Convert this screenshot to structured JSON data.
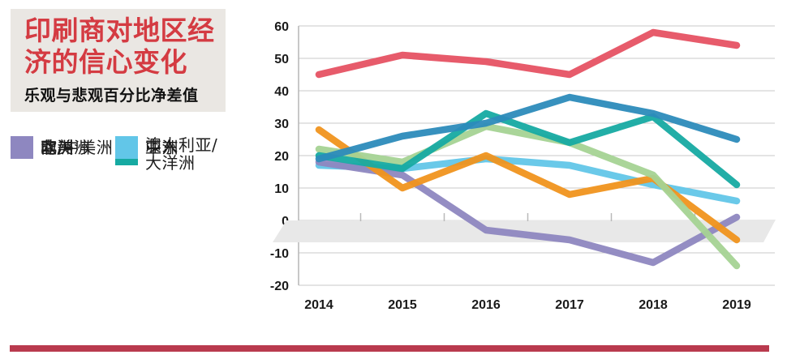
{
  "header": {
    "title_line1": "印刷商对地区经",
    "title_line2": "济的信心变化",
    "subtitle": "乐观与悲观百分比净差值",
    "title_color": "#d43b42",
    "box_bg": "#eae7e3"
  },
  "legend": {
    "items": [
      {
        "label": "欧洲",
        "color": "#2c8bba"
      },
      {
        "label": "北美洲",
        "color": "#e65263"
      },
      {
        "label": "南/中美洲",
        "color": "#a5d394"
      },
      {
        "label": "非洲",
        "color": "#8e87c0"
      },
      {
        "label": "澳大利亚/大洋洲",
        "color": "#16aaa2"
      },
      {
        "label": "中东",
        "color": "#f0931d"
      },
      {
        "label": "亚洲",
        "color": "#62c6e8"
      }
    ]
  },
  "chart_data": {
    "type": "line",
    "x": [
      2014,
      2015,
      2016,
      2017,
      2018,
      2019
    ],
    "series": [
      {
        "name": "亚洲",
        "color": "#62c6e8",
        "values": [
          17,
          16,
          19,
          17,
          11,
          6
        ]
      },
      {
        "name": "非洲",
        "color": "#8e87c0",
        "values": [
          18,
          14,
          -3,
          -6,
          -13,
          1
        ]
      },
      {
        "name": "中东",
        "color": "#f0931d",
        "values": [
          28,
          10,
          20,
          8,
          13,
          -6
        ]
      },
      {
        "name": "南/中美洲",
        "color": "#a5d394",
        "values": [
          22,
          18,
          29,
          24,
          14,
          -14
        ]
      },
      {
        "name": "澳大利亚/大洋洲",
        "color": "#16aaa2",
        "values": [
          20,
          16,
          33,
          24,
          32,
          11
        ]
      },
      {
        "name": "欧洲",
        "color": "#2c8bba",
        "values": [
          19,
          26,
          30,
          38,
          33,
          25
        ]
      },
      {
        "name": "北美洲",
        "color": "#e65263",
        "values": [
          45,
          51,
          49,
          45,
          58,
          54
        ]
      }
    ],
    "title": "印刷商对地区经济的信心变化",
    "xlabel": "",
    "ylabel": "乐观与悲观百分比净差值",
    "ylim": [
      -20,
      60
    ],
    "ytick_step": 10,
    "grid": true,
    "legend_position": "left",
    "zero_band_color": "#e8e8e8",
    "grid_color": "#c9c9c9"
  },
  "footer": {
    "bar_color": "#b93a4e"
  }
}
